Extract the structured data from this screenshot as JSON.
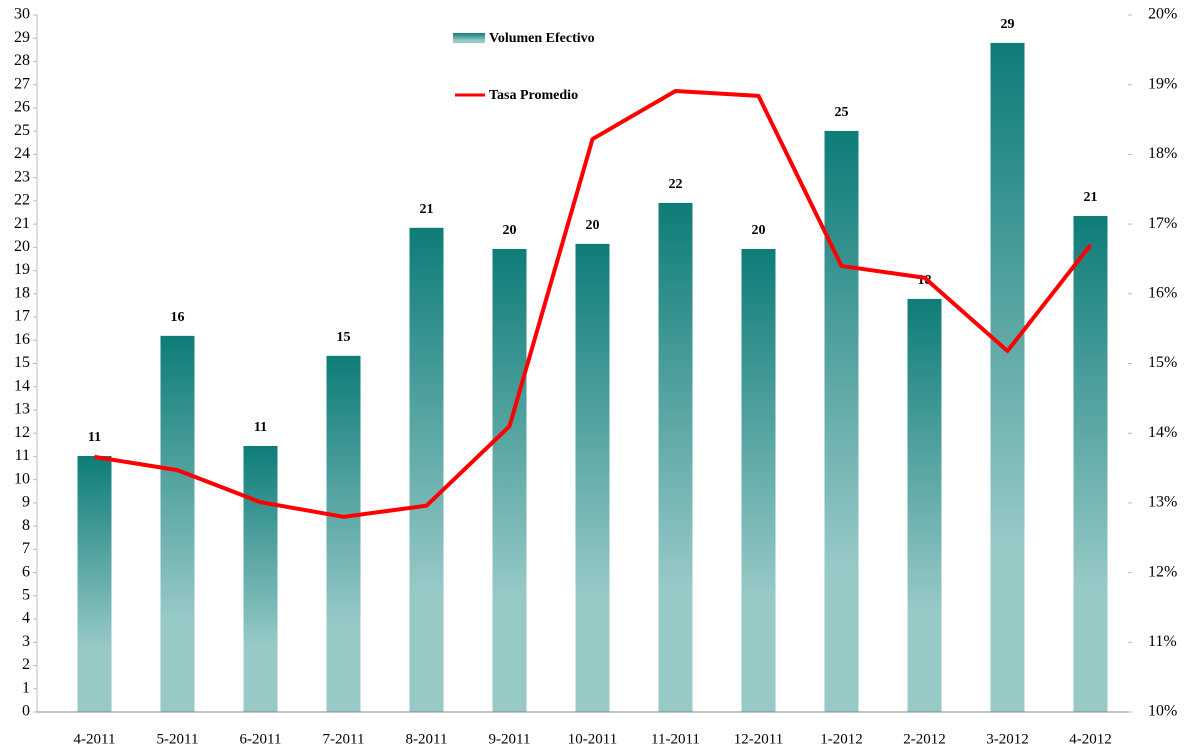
{
  "chart_data": {
    "type": "bar_line",
    "categories": [
      "4-2011",
      "5-2011",
      "6-2011",
      "7-2011",
      "8-2011",
      "9-2011",
      "10-2011",
      "11-2011",
      "12-2011",
      "1-2012",
      "2-2012",
      "3-2012",
      "4-2012"
    ],
    "series": [
      {
        "name": "Volumen Efectivo",
        "type": "bar",
        "color": "#0e7c78",
        "color2": "#97c9c7",
        "values": [
          11.02,
          16.19,
          11.45,
          15.33,
          20.84,
          19.93,
          20.15,
          21.91,
          19.93,
          25.01,
          17.78,
          28.8,
          21.35
        ],
        "value_labels": [
          "11",
          "16",
          "11",
          "15",
          "21",
          "20",
          "20",
          "22",
          "20",
          "25",
          "18",
          "29",
          "21"
        ]
      },
      {
        "name": "Tasa Promedio",
        "type": "line",
        "axis": "y2",
        "color": "#ff0000",
        "values": [
          13.66,
          13.47,
          13.01,
          12.8,
          12.96,
          14.1,
          18.22,
          18.91,
          18.84,
          16.4,
          16.23,
          15.18,
          16.7
        ]
      }
    ],
    "ylim": [
      0,
      30
    ],
    "yticks": [
      0,
      1,
      2,
      3,
      4,
      5,
      6,
      7,
      8,
      9,
      10,
      11,
      12,
      13,
      14,
      15,
      16,
      17,
      18,
      19,
      20,
      21,
      22,
      23,
      24,
      25,
      26,
      27,
      28,
      29,
      30
    ],
    "y2lim": [
      10,
      20
    ],
    "y2ticks": [
      {
        "value": 10,
        "label": "10%"
      },
      {
        "value": 11,
        "label": "11%"
      },
      {
        "value": 12,
        "label": "12%"
      },
      {
        "value": 13,
        "label": "13%"
      },
      {
        "value": 14,
        "label": "14%"
      },
      {
        "value": 15,
        "label": "15%"
      },
      {
        "value": 16,
        "label": "16%"
      },
      {
        "value": 17,
        "label": "17%"
      },
      {
        "value": 18,
        "label": "18%"
      },
      {
        "value": 19,
        "label": "19%"
      },
      {
        "value": 20,
        "label": "20%"
      }
    ],
    "grid": false
  }
}
